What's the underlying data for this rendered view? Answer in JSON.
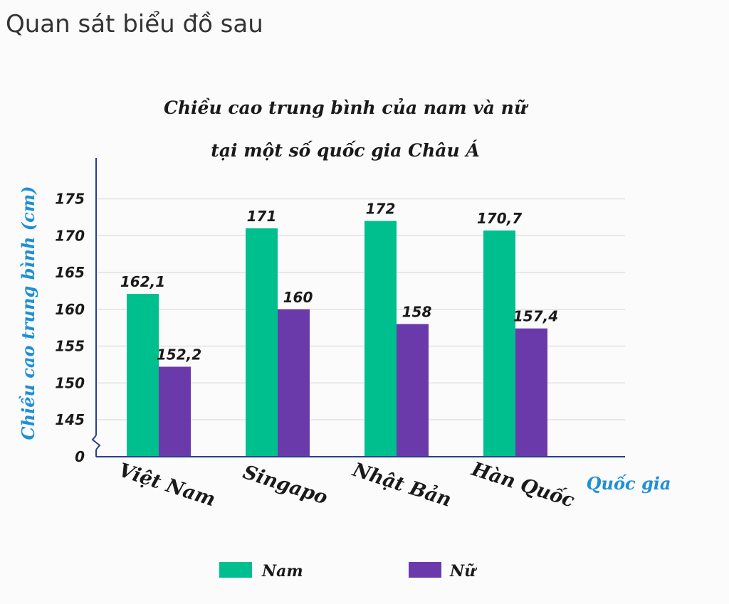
{
  "prompt": "Quan sát biểu đồ sau",
  "colors": {
    "nam": "#00bf8f",
    "nu": "#6a3aaa",
    "axis": "#2b3f8c",
    "axis_label": "#1f8fd6",
    "grid": "#e2e2e2"
  },
  "chart_data": {
    "type": "bar",
    "title": [
      "Chiều cao trung bình của nam và nữ",
      "tại một số quốc gia Châu Á"
    ],
    "xlabel": "Quốc gia",
    "ylabel": "Chiều cao trung bình (cm)",
    "categories": [
      "Việt Nam",
      "Singapo",
      "Nhật Bản",
      "Hàn Quốc"
    ],
    "series": [
      {
        "name": "Nam",
        "values": [
          162.1,
          171,
          172,
          170.7
        ],
        "labels": [
          "162,1",
          "171",
          "172",
          "170,7"
        ]
      },
      {
        "name": "Nữ",
        "values": [
          152.2,
          160,
          158,
          157.4
        ],
        "labels": [
          "152,2",
          "160",
          "158",
          "157,4"
        ]
      }
    ],
    "yticks": [
      "0",
      "145",
      "150",
      "155",
      "160",
      "165",
      "170",
      "175"
    ],
    "ylim": [
      140,
      175
    ],
    "axis_break": true,
    "grid": true,
    "legend_position": "bottom"
  }
}
